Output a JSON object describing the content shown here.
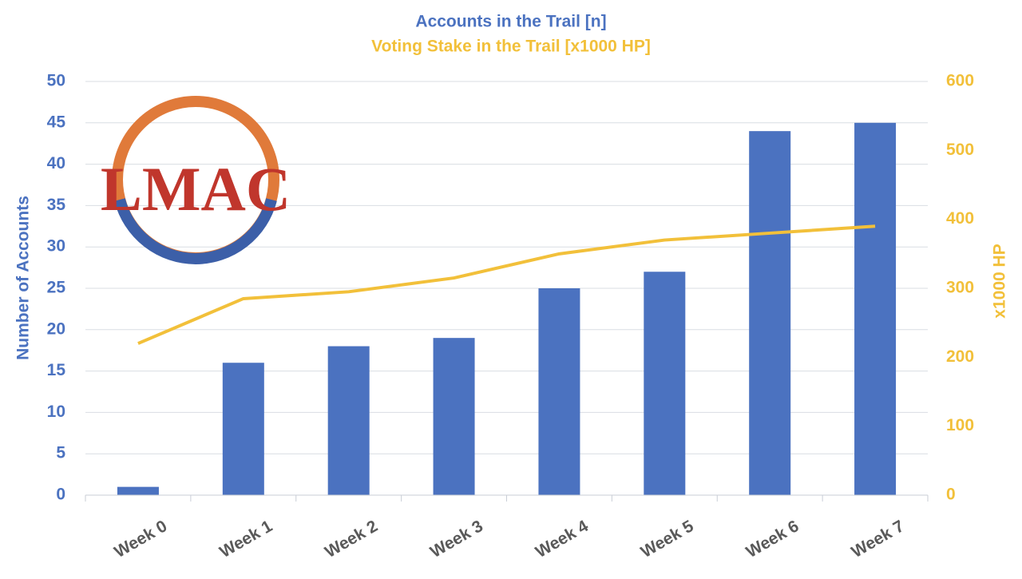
{
  "logo": "LMAC",
  "chart_data": {
    "type": "bar",
    "title": "Accounts in the Trail [n]",
    "subtitle": "Voting Stake in the Trail [x1000 HP]",
    "y_label": "Number of Accounts",
    "y2_label": "x1000 HP",
    "categories": [
      "Week 0",
      "Week 1",
      "Week 2",
      "Week 3",
      "Week 4",
      "Week 5",
      "Week 6",
      "Week 7"
    ],
    "series": [
      {
        "name": "Accounts in the Trail [n]",
        "type": "bar",
        "color": "#4b72c0",
        "values": [
          1,
          16,
          18,
          19,
          25,
          27,
          44,
          45
        ]
      },
      {
        "name": "Voting Stake in the Trail [x1000 HP]",
        "type": "line",
        "axis": "y2",
        "color": "#f2c03a",
        "values": [
          220,
          285,
          295,
          315,
          350,
          370,
          380,
          390
        ]
      }
    ],
    "ylim": [
      0,
      50
    ],
    "yticks": [
      0,
      5,
      10,
      15,
      20,
      25,
      30,
      35,
      40,
      45,
      50
    ],
    "y2lim": [
      0,
      600
    ],
    "y2ticks": [
      0,
      100,
      200,
      300,
      400,
      500,
      600
    ],
    "grid": true
  }
}
